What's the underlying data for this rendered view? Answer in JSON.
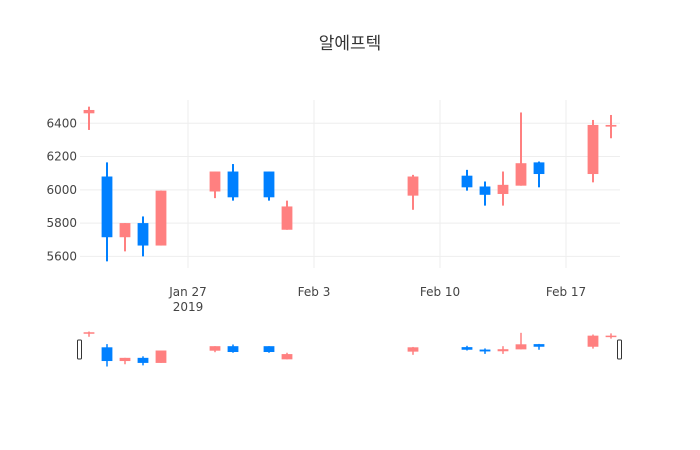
{
  "chart_data": {
    "type": "candlestick",
    "title": "알에프텍",
    "xlabel": "",
    "ylabel": "",
    "y_ticks": [
      5600,
      5800,
      6000,
      6200,
      6400
    ],
    "ylim": [
      5530,
      6540
    ],
    "x_ticks": [
      {
        "date": "2019-01-27",
        "label": "Jan 27",
        "sublabel": "2019"
      },
      {
        "date": "2019-02-03",
        "label": "Feb 3",
        "sublabel": ""
      },
      {
        "date": "2019-02-10",
        "label": "Feb 10",
        "sublabel": ""
      },
      {
        "date": "2019-02-17",
        "label": "Feb 17",
        "sublabel": ""
      }
    ],
    "xlim": [
      "2019-01-21",
      "2019-02-19"
    ],
    "increasing_color": "#ff8080",
    "decreasing_color": "#0080ff",
    "range_slider": true,
    "candles": [
      {
        "date": "2019-01-21",
        "open": 6460,
        "high": 6500,
        "low": 6360,
        "close": 6480
      },
      {
        "date": "2019-01-22",
        "open": 6080,
        "high": 6165,
        "low": 5570,
        "close": 5715
      },
      {
        "date": "2019-01-23",
        "open": 5715,
        "high": 5800,
        "low": 5630,
        "close": 5800
      },
      {
        "date": "2019-01-24",
        "open": 5800,
        "high": 5840,
        "low": 5600,
        "close": 5665
      },
      {
        "date": "2019-01-25",
        "open": 5665,
        "high": 5995,
        "low": 5665,
        "close": 5995
      },
      {
        "date": "2019-01-28",
        "open": 5990,
        "high": 6110,
        "low": 5950,
        "close": 6110
      },
      {
        "date": "2019-01-29",
        "open": 6110,
        "high": 6155,
        "low": 5935,
        "close": 5955
      },
      {
        "date": "2019-01-31",
        "open": 6110,
        "high": 6110,
        "low": 5935,
        "close": 5955
      },
      {
        "date": "2019-02-01",
        "open": 5760,
        "high": 5935,
        "low": 5760,
        "close": 5900
      },
      {
        "date": "2019-02-08",
        "open": 5965,
        "high": 6090,
        "low": 5880,
        "close": 6080
      },
      {
        "date": "2019-02-11",
        "open": 6085,
        "high": 6120,
        "low": 5995,
        "close": 6015
      },
      {
        "date": "2019-02-12",
        "open": 6020,
        "high": 6050,
        "low": 5905,
        "close": 5970
      },
      {
        "date": "2019-02-13",
        "open": 5975,
        "high": 6110,
        "low": 5905,
        "close": 6030
      },
      {
        "date": "2019-02-14",
        "open": 6025,
        "high": 6465,
        "low": 6025,
        "close": 6160
      },
      {
        "date": "2019-02-15",
        "open": 6165,
        "high": 6170,
        "low": 6015,
        "close": 6095
      },
      {
        "date": "2019-02-18",
        "open": 6095,
        "high": 6420,
        "low": 6045,
        "close": 6390
      },
      {
        "date": "2019-02-19",
        "open": 6380,
        "high": 6450,
        "low": 6310,
        "close": 6390
      }
    ]
  }
}
